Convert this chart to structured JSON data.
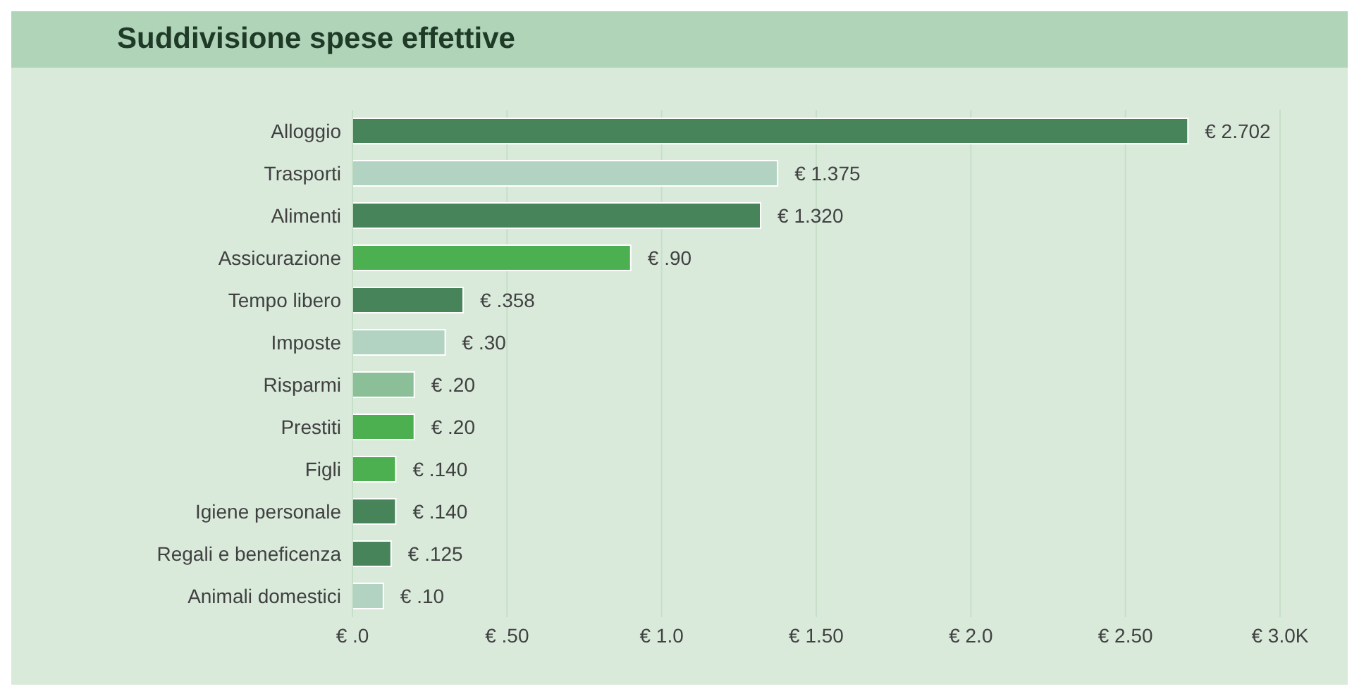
{
  "chart_data": {
    "type": "bar",
    "orientation": "horizontal",
    "title": "Suddivisione spese effettive",
    "categories": [
      "Alloggio",
      "Trasporti",
      "Alimenti",
      "Assicurazione",
      "Tempo libero",
      "Imposte",
      "Risparmi",
      "Prestiti",
      "Figli",
      "Igiene personale",
      "Regali e beneficenza",
      "Animali domestici"
    ],
    "values": [
      2.702,
      1.375,
      1.32,
      0.9,
      0.358,
      0.3,
      0.2,
      0.2,
      0.14,
      0.14,
      0.125,
      0.1
    ],
    "value_labels": [
      "€ 2.702",
      "€ 1.375",
      "€ 1.320",
      "€ .90",
      "€ .358",
      "€ .30",
      "€ .20",
      "€ .20",
      "€ .140",
      "€ .140",
      "€ .125",
      "€ .10"
    ],
    "colors": [
      "#48845a",
      "#b2d3c2",
      "#48845a",
      "#4caf50",
      "#48845a",
      "#b2d3c2",
      "#8bbf98",
      "#4caf50",
      "#4caf50",
      "#48845a",
      "#48845a",
      "#b2d3c2"
    ],
    "xlim": [
      0,
      3
    ],
    "xticks": [
      {
        "value": 0,
        "label": "€ .0"
      },
      {
        "value": 0.5,
        "label": "€ .50"
      },
      {
        "value": 1,
        "label": "€ 1.0"
      },
      {
        "value": 1.5,
        "label": "€ 1.50"
      },
      {
        "value": 2,
        "label": "€ 2.0"
      },
      {
        "value": 2.5,
        "label": "€ 2.50"
      },
      {
        "value": 3,
        "label": "€ 3.0K"
      }
    ],
    "grid": "x"
  }
}
